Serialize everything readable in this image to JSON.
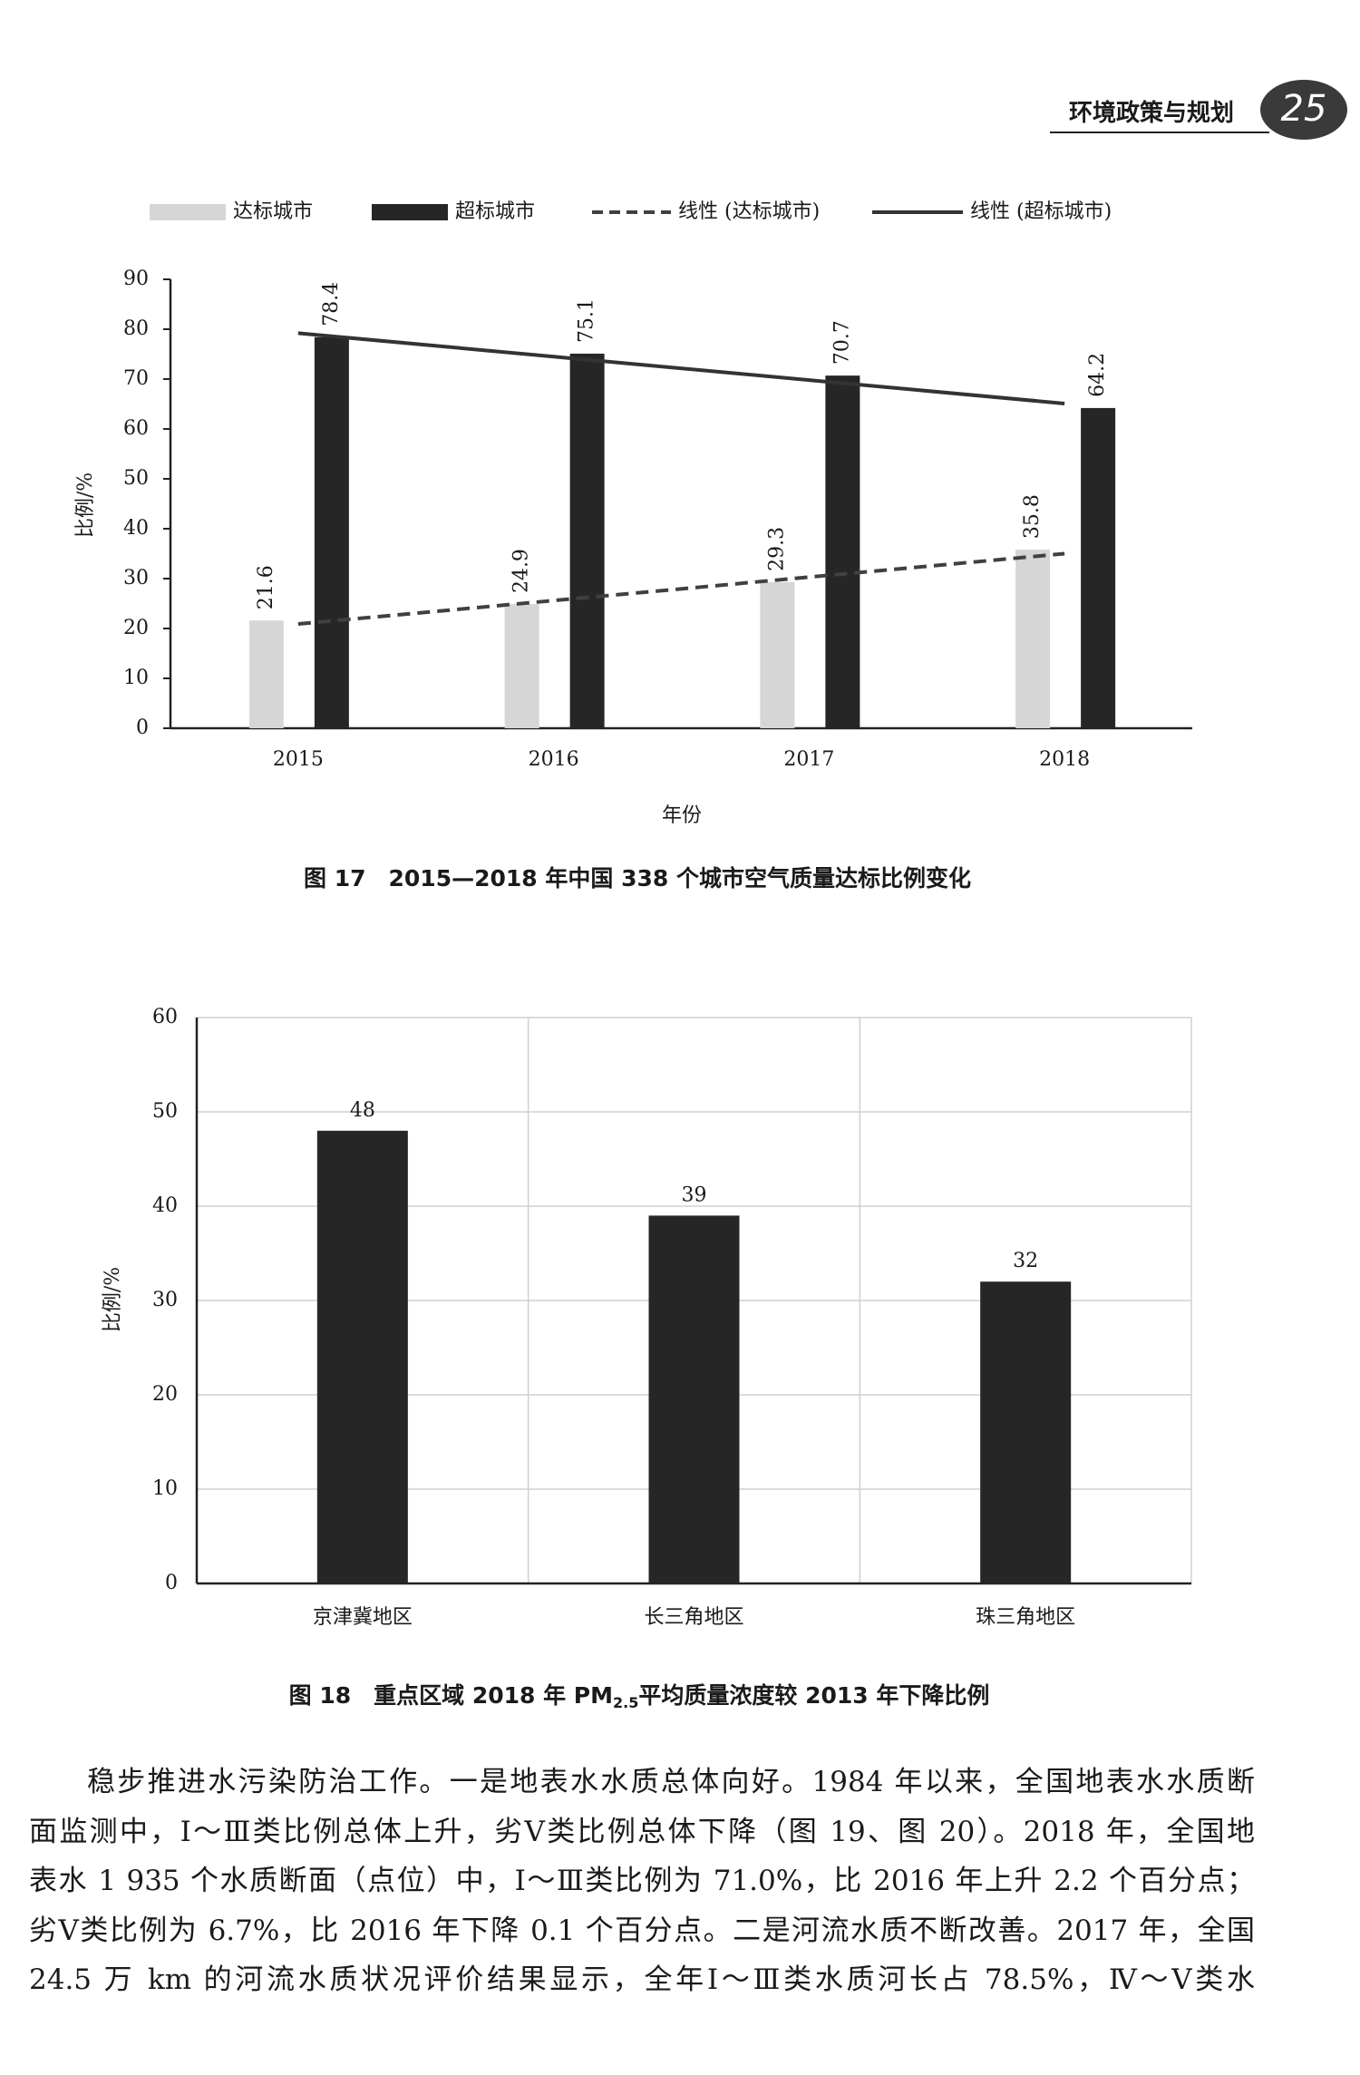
{
  "header": {
    "title": "环境政策与规划",
    "page": "25"
  },
  "chart_data": [
    {
      "type": "bar",
      "caption": "图 17　2015—2018 年中国 338 个城市空气质量达标比例变化",
      "y_label": "比例/%",
      "x_label": "年份",
      "categories": [
        "2015",
        "2016",
        "2017",
        "2018"
      ],
      "series": [
        {
          "name": "达标城市",
          "color": "#d6d6d6",
          "type": "bar",
          "values": [
            21.6,
            24.9,
            29.3,
            35.8
          ]
        },
        {
          "name": "超标城市",
          "color": "#262626",
          "type": "bar",
          "values": [
            78.4,
            75.1,
            70.7,
            64.2
          ]
        },
        {
          "name": "线性 (达标城市)",
          "color": "#404040",
          "type": "line",
          "dashed": true,
          "values": [
            20.9,
            25.6,
            30.3,
            35.0
          ]
        },
        {
          "name": "线性 (超标城市)",
          "color": "#333333",
          "type": "line",
          "dashed": false,
          "values": [
            79.2,
            74.5,
            69.8,
            65.1
          ]
        }
      ],
      "ylim": [
        0,
        90
      ],
      "yticks": [
        0,
        10,
        20,
        30,
        40,
        50,
        60,
        70,
        80,
        90
      ],
      "legend": "top",
      "grid": false
    },
    {
      "type": "bar",
      "caption": [
        "图 18　重点区域 2018 年 PM",
        "2.5",
        "平均质量浓度较 2013 年下降比例"
      ],
      "y_label": "比例/%",
      "categories": [
        "京津冀地区",
        "长三角地区",
        "珠三角地区"
      ],
      "values": [
        48,
        39,
        32
      ],
      "color": "#262626",
      "ylim": [
        0,
        60
      ],
      "yticks": [
        0,
        10,
        20,
        30,
        40,
        50,
        60
      ],
      "grid": true
    }
  ],
  "body": {
    "lines": [
      "稳步推进水污染防治工作。一是地表水水质总体向好。1984 年以来，全国地表水水质断",
      "面监测中，Ⅰ～Ⅲ类比例总体上升，劣Ⅴ类比例总体下降（图 19、图 20）。2018 年，全国地",
      "表水 1 935 个水质断面（点位）中，Ⅰ～Ⅲ类比例为 71.0%，比 2016 年上升 2.2 个百分点；",
      "劣Ⅴ类比例为 6.7%，比 2016 年下降 0.1 个百分点。二是河流水质不断改善。2017 年，全国",
      "24.5 万 km 的河流水质状况评价结果显示，全年Ⅰ～Ⅲ类水质河长占 78.5%，Ⅳ～Ⅴ类水"
    ]
  }
}
